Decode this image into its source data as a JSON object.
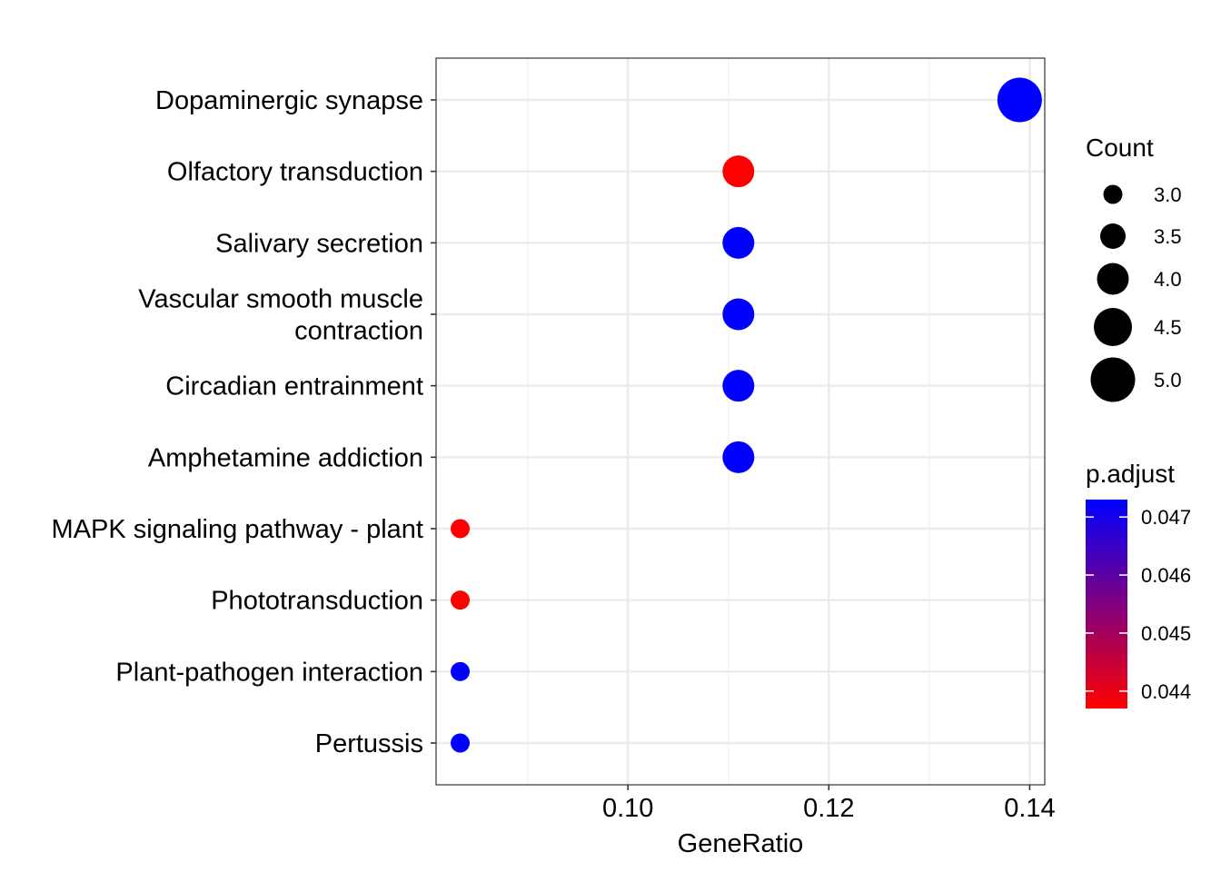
{
  "chart_data": {
    "type": "scatter",
    "xlabel": "GeneRatio",
    "ylabel": "",
    "xlim": [
      0.0809,
      0.1415
    ],
    "x_ticks": [
      "0.10",
      "0.12",
      "0.14"
    ],
    "x_tick_values": [
      0.1,
      0.12,
      0.14
    ],
    "grid": true,
    "categories": [
      "Dopaminergic synapse",
      "Olfactory transduction",
      "Salivary secretion",
      "Vascular smooth muscle contraction",
      "Circadian entrainment",
      "Amphetamine addiction",
      "MAPK signaling pathway - plant",
      "Phototransduction",
      "Plant-pathogen interaction",
      "Pertussis"
    ],
    "category_labels": [
      [
        "Dopaminergic synapse"
      ],
      [
        "Olfactory transduction"
      ],
      [
        "Salivary secretion"
      ],
      [
        "Vascular smooth muscle",
        "contraction"
      ],
      [
        "Circadian entrainment"
      ],
      [
        "Amphetamine addiction"
      ],
      [
        "MAPK signaling pathway - plant"
      ],
      [
        "Phototransduction"
      ],
      [
        "Plant-pathogen interaction"
      ],
      [
        "Pertussis"
      ]
    ],
    "points": [
      {
        "category": "Dopaminergic synapse",
        "gene_ratio": 0.139,
        "count": 5,
        "p_adjust": 0.0473
      },
      {
        "category": "Olfactory transduction",
        "gene_ratio": 0.111,
        "count": 4,
        "p_adjust": 0.0437
      },
      {
        "category": "Salivary secretion",
        "gene_ratio": 0.111,
        "count": 4,
        "p_adjust": 0.0473
      },
      {
        "category": "Vascular smooth muscle contraction",
        "gene_ratio": 0.111,
        "count": 4,
        "p_adjust": 0.0473
      },
      {
        "category": "Circadian entrainment",
        "gene_ratio": 0.111,
        "count": 4,
        "p_adjust": 0.0473
      },
      {
        "category": "Amphetamine addiction",
        "gene_ratio": 0.111,
        "count": 4,
        "p_adjust": 0.0473
      },
      {
        "category": "MAPK signaling pathway - plant",
        "gene_ratio": 0.0833,
        "count": 3,
        "p_adjust": 0.0437
      },
      {
        "category": "Phototransduction",
        "gene_ratio": 0.0833,
        "count": 3,
        "p_adjust": 0.0437
      },
      {
        "category": "Plant-pathogen interaction",
        "gene_ratio": 0.0833,
        "count": 3,
        "p_adjust": 0.0473
      },
      {
        "category": "Pertussis",
        "gene_ratio": 0.0833,
        "count": 3,
        "p_adjust": 0.0473
      }
    ],
    "legend_size": {
      "title": "Count",
      "entries": [
        "3.0",
        "3.5",
        "4.0",
        "4.5",
        "5.0"
      ],
      "values": [
        3.0,
        3.5,
        4.0,
        4.5,
        5.0
      ]
    },
    "legend_color": {
      "title": "p.adjust",
      "ticks": [
        "0.047",
        "0.046",
        "0.045",
        "0.044"
      ],
      "tick_values": [
        0.047,
        0.046,
        0.045,
        0.044
      ],
      "range": [
        0.0437,
        0.0473
      ],
      "low_color": "#ff0000",
      "high_color": "#0000ff"
    },
    "legend_placement": "right"
  }
}
